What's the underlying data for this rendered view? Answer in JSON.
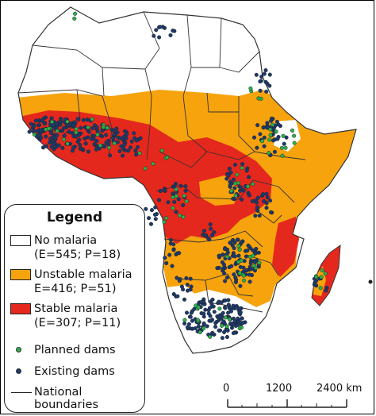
{
  "legend": {
    "title": "Legend",
    "no_malaria": {
      "label": "No malaria",
      "stats": "(E=545; P=18)",
      "color": "#ffffff"
    },
    "unstable_malaria": {
      "label": "Unstable malaria",
      "stats": "E=416; P=51)",
      "color": "#f6a30d"
    },
    "stable_malaria": {
      "label": "Stable malaria",
      "stats": "(E=307; P=11)",
      "color": "#e5281d"
    },
    "planned_dams": {
      "label": "Planned dams",
      "color": "#2bb24a"
    },
    "existing_dams": {
      "label": "Existing dams",
      "color": "#1b3a6e"
    },
    "national_boundaries": {
      "label_line1": "National",
      "label_line2": "boundaries"
    }
  },
  "scale": {
    "tick0": "0",
    "tick1": "1200",
    "tick2": "2400 km"
  },
  "outline_color": "#333333"
}
